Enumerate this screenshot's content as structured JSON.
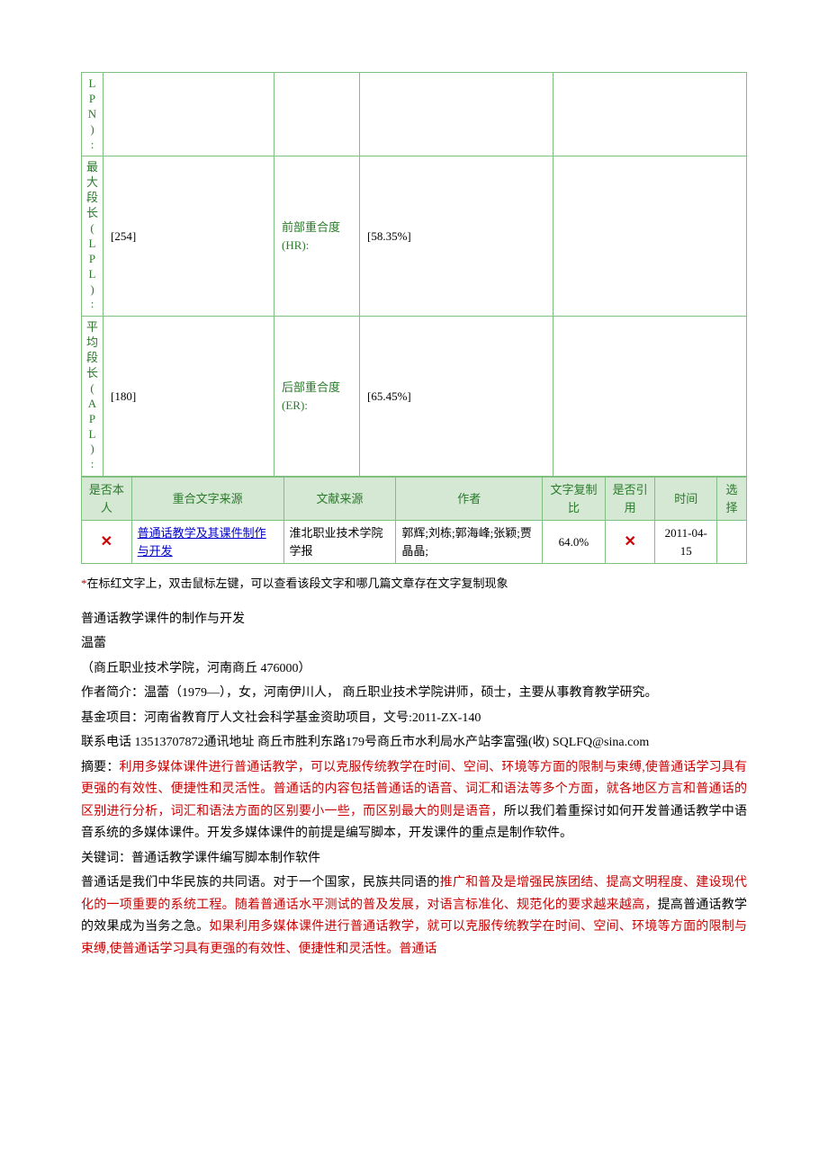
{
  "colors": {
    "border": "#7fbf7f",
    "header_bg": "#d4e8d4",
    "label_text": "#2a7a2a",
    "red": "#cc0000",
    "link": "#0000cc",
    "black": "#000000"
  },
  "stats": {
    "rows": [
      {
        "label": "LPN):",
        "value": "",
        "label2": "",
        "value2": "",
        "has_empty": true
      },
      {
        "label": "最大段长(LPL):",
        "value": "[254]",
        "label2": "前部重合度(HR):",
        "value2": "[58.35%]",
        "has_empty": true
      },
      {
        "label": "平均段长(APL):",
        "value": "[180]",
        "label2": "后部重合度(ER):",
        "value2": "[65.45%]",
        "has_empty": true
      }
    ]
  },
  "source": {
    "headers": [
      "是否本人",
      "重合文字来源",
      "文献来源",
      "作者",
      "文字复制比",
      "是否引用",
      "时间",
      "选择"
    ],
    "rows": [
      {
        "is_self": "✕",
        "source_title": "普通话教学及其课件制作与开发",
        "doc_source": "淮北职业技术学院学报",
        "authors": "郭辉;刘栋;郭海峰;张颖;贾晶晶;",
        "copy_ratio": "64.0%",
        "is_cited": "✕",
        "time": "2011-04-15",
        "select": ""
      }
    ]
  },
  "note": {
    "star": "*",
    "text": "在标红文字上，双击鼠标左键，可以查看该段文字和哪几篇文章存在文字复制现象"
  },
  "content": {
    "title": "普通话教学课件的制作与开发",
    "author": "温蕾",
    "affiliation": "（商丘职业技术学院，河南商丘 476000）",
    "author_intro": "作者简介：温蕾（1979—），女，河南伊川人， 商丘职业技术学院讲师，硕士，主要从事教育教学研究。",
    "fund": "基金项目：河南省教育厅人文社会科学基金资助项目，文号:2011-ZX-140",
    "contact": "联系电话 13513707872通讯地址 商丘市胜利东路179号商丘市水利局水产站李富强(收) SQLFQ@sina.com",
    "abstract_label": "摘要：",
    "abstract_parts": [
      {
        "red": true,
        "text": "利用多媒体课件进行普通话教学，可以克服传统教学在时间、空间、环境等方面的限制与束缚,使普通话学习具有更强的有效性、便捷性和灵活性。普通话的内容包括普通话的语音、词汇和语法等多个方面，就各地区方言和普通话的区别进行分析，词汇和语法方面的区别要小一些，而区别最大的则是语音，"
      },
      {
        "red": false,
        "text": "所以我们着重探讨如何开发普通话教学中语音系统的多媒体课件。开发多媒体课件的前提是编写脚本，开发课件的重点是制作软件。"
      }
    ],
    "keywords_label": "关键词：",
    "keywords": "普通话教学课件编写脚本制作软件",
    "body_parts": [
      {
        "red": false,
        "text": "普通话是我们中华民族的共同语。对于一个国家，民族共同语的"
      },
      {
        "red": true,
        "text": "推广和普及是增强民族团结、提高文明程度、建设现代化的一项重要的系统工程。随着普通话水平测试的普及发展，对语言标准化、规范化的要求越来越高，"
      },
      {
        "red": false,
        "text": "提高普通话教学的效果成为当务之急。"
      },
      {
        "red": true,
        "text": "如果利用多媒体课件进行普通话教学，就可以克服传统教学在时间、空间、环境等方面的限制与束缚,使普通话学习具有更强的有效性、便捷性和灵活性。普通话"
      }
    ]
  }
}
